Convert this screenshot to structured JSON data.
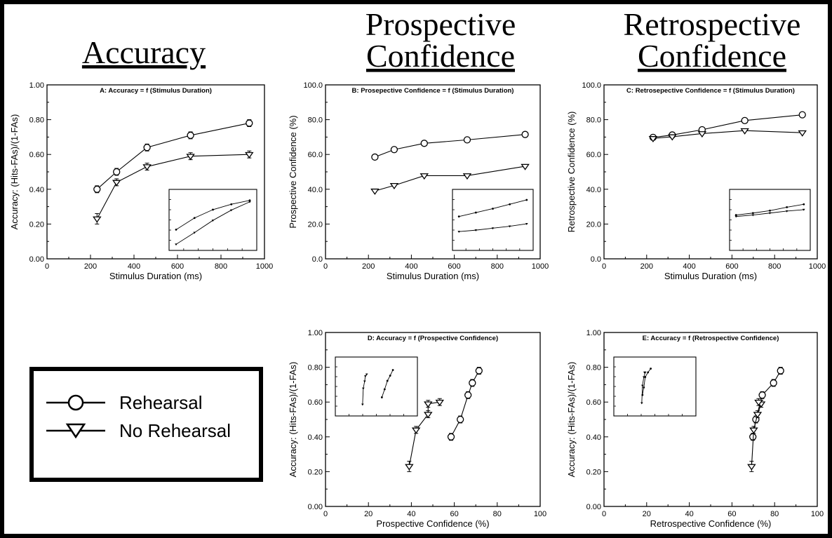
{
  "headings": {
    "accuracy": "Accuracy",
    "prospective_l1": "Prospective",
    "prospective_l2": "Confidence",
    "retrospective_l1": "Retrospective",
    "retrospective_l2": "Confidence"
  },
  "legend": {
    "rehearsal": "Rehearsal",
    "no_rehearsal": "No Rehearsal"
  },
  "chart_data": [
    {
      "id": "A",
      "type": "line",
      "title": "A: Accuracy = f (Stimulus Duration)",
      "xlabel": "Stimulus Duration (ms)",
      "ylabel": "Accuracy: (Hits-FAs)/(1-FAs)",
      "xlim": [
        0,
        1000
      ],
      "ylim": [
        0,
        1
      ],
      "xticks": [
        0,
        200,
        400,
        600,
        800,
        1000
      ],
      "yticks": [
        0,
        0.2,
        0.4,
        0.6,
        0.8,
        1.0
      ],
      "yfmt": 2,
      "series": [
        {
          "name": "Rehearsal",
          "marker": "circle",
          "x": [
            230,
            320,
            460,
            660,
            930
          ],
          "y": [
            0.4,
            0.5,
            0.64,
            0.71,
            0.78
          ],
          "err": [
            0.02,
            0.02,
            0.02,
            0.02,
            0.02
          ]
        },
        {
          "name": "No Rehearsal",
          "marker": "triangle",
          "x": [
            230,
            320,
            460,
            660,
            930
          ],
          "y": [
            0.23,
            0.44,
            0.53,
            0.59,
            0.6
          ],
          "err": [
            0.03,
            0.02,
            0.02,
            0.02,
            0.02
          ]
        }
      ],
      "inset": {
        "series": [
          {
            "y": [
              0.3,
              0.54,
              0.71,
              0.82,
              0.9
            ]
          },
          {
            "y": [
              0.0,
              0.24,
              0.49,
              0.7,
              0.87
            ]
          }
        ]
      }
    },
    {
      "id": "B",
      "type": "line",
      "title": "B: Prosepective Confidence = f (Stimulus Duration)",
      "xlabel": "Stimulus Duration (ms)",
      "ylabel": "Prospective Confidence (%)",
      "xlim": [
        0,
        1000
      ],
      "ylim": [
        0,
        100
      ],
      "xticks": [
        0,
        200,
        400,
        600,
        800,
        1000
      ],
      "yticks": [
        0,
        20,
        40,
        60,
        80,
        100
      ],
      "yfmt": 1,
      "series": [
        {
          "name": "Rehearsal",
          "marker": "circle",
          "x": [
            230,
            320,
            460,
            660,
            930
          ],
          "y": [
            58.5,
            62.8,
            66.4,
            68.4,
            71.5
          ]
        },
        {
          "name": "No Rehearsal",
          "marker": "triangle",
          "x": [
            230,
            320,
            460,
            660,
            930
          ],
          "y": [
            39.0,
            42.2,
            47.8,
            47.8,
            53.2
          ]
        }
      ],
      "inset": {
        "series": [
          {
            "y": [
              0.57,
              0.65,
              0.73,
              0.82,
              0.91
            ]
          },
          {
            "y": [
              0.26,
              0.29,
              0.33,
              0.37,
              0.42
            ]
          }
        ]
      }
    },
    {
      "id": "C",
      "type": "line",
      "title": "C: Retrosepective Confidence = f (Stimulus Duration)",
      "xlabel": "Stimulus Duration (ms)",
      "ylabel": "Retrospective Confidence (%)",
      "xlim": [
        0,
        1000
      ],
      "ylim": [
        0,
        100
      ],
      "xticks": [
        0,
        200,
        400,
        600,
        800,
        1000
      ],
      "yticks": [
        0,
        20,
        40,
        60,
        80,
        100
      ],
      "yfmt": 1,
      "series": [
        {
          "name": "Rehearsal",
          "marker": "circle",
          "x": [
            230,
            320,
            460,
            660,
            930
          ],
          "y": [
            69.8,
            71.2,
            74.2,
            79.5,
            82.8
          ]
        },
        {
          "name": "No Rehearsal",
          "marker": "triangle",
          "x": [
            230,
            320,
            460,
            660,
            930
          ],
          "y": [
            69.2,
            70.2,
            72.0,
            73.7,
            72.5
          ]
        }
      ],
      "inset": {
        "series": [
          {
            "y": [
              0.6,
              0.64,
              0.69,
              0.76,
              0.82
            ]
          },
          {
            "y": [
              0.57,
              0.6,
              0.64,
              0.68,
              0.71
            ]
          }
        ]
      }
    },
    {
      "id": "D",
      "type": "scatter",
      "title": "D: Accuracy = f (Prospective Confidence)",
      "xlabel": "Prospective Confidence (%)",
      "ylabel": "Accuracy: (Hits-FAs)/(1-FAs)",
      "xlim": [
        0,
        100
      ],
      "ylim": [
        0,
        1
      ],
      "xticks": [
        0,
        20,
        40,
        60,
        80,
        100
      ],
      "yticks": [
        0,
        0.2,
        0.4,
        0.6,
        0.8,
        1.0
      ],
      "yfmt": 2,
      "series": [
        {
          "name": "Rehearsal",
          "marker": "circle",
          "x": [
            58.5,
            62.8,
            66.4,
            68.4,
            71.5
          ],
          "y": [
            0.4,
            0.5,
            0.64,
            0.71,
            0.78
          ],
          "err": [
            0.02,
            0.02,
            0.02,
            0.02,
            0.02
          ]
        },
        {
          "name": "No Rehearsal",
          "marker": "triangle",
          "x": [
            39.0,
            42.2,
            47.8,
            47.8,
            53.2
          ],
          "y": [
            0.23,
            0.44,
            0.53,
            0.59,
            0.6
          ],
          "err": [
            0.03,
            0.02,
            0.02,
            0.02,
            0.02
          ]
        }
      ],
      "inset": {
        "series": [
          {
            "x": [
              0.58,
              0.62,
              0.66,
              0.7,
              0.74
            ],
            "y": [
              0.27,
              0.44,
              0.62,
              0.73,
              0.85
            ]
          },
          {
            "x": [
              0.3,
              0.31,
              0.33,
              0.34,
              0.36
            ],
            "y": [
              0.12,
              0.46,
              0.61,
              0.72,
              0.76
            ]
          }
        ]
      }
    },
    {
      "id": "E",
      "type": "scatter",
      "title": "E: Accuracy = f (Retrospective Confidence)",
      "xlabel": "Retrospective Confidence (%)",
      "ylabel": "Accuracy: (Hits-FAs)/(1-FAs)",
      "xlim": [
        0,
        100
      ],
      "ylim": [
        0,
        1
      ],
      "xticks": [
        0,
        20,
        40,
        60,
        80,
        100
      ],
      "yticks": [
        0,
        0.2,
        0.4,
        0.6,
        0.8,
        1.0
      ],
      "yfmt": 2,
      "series": [
        {
          "name": "Rehearsal",
          "marker": "circle",
          "x": [
            69.8,
            71.2,
            74.2,
            79.5,
            82.8
          ],
          "y": [
            0.4,
            0.5,
            0.64,
            0.71,
            0.78
          ],
          "err": [
            0.02,
            0.02,
            0.02,
            0.02,
            0.02
          ]
        },
        {
          "name": "No Rehearsal",
          "marker": "triangle",
          "x": [
            69.2,
            70.2,
            72.0,
            73.7,
            72.5
          ],
          "y": [
            0.23,
            0.44,
            0.53,
            0.59,
            0.6
          ],
          "err": [
            0.03,
            0.02,
            0.02,
            0.02,
            0.02
          ]
        }
      ],
      "inset": {
        "series": [
          {
            "x": [
              0.32,
              0.34,
              0.36,
              0.4,
              0.44
            ],
            "y": [
              0.32,
              0.48,
              0.7,
              0.8,
              0.88
            ]
          },
          {
            "x": [
              0.31,
              0.32,
              0.34,
              0.36,
              0.35
            ],
            "y": [
              0.15,
              0.52,
              0.7,
              0.8,
              0.8
            ]
          }
        ]
      }
    }
  ]
}
